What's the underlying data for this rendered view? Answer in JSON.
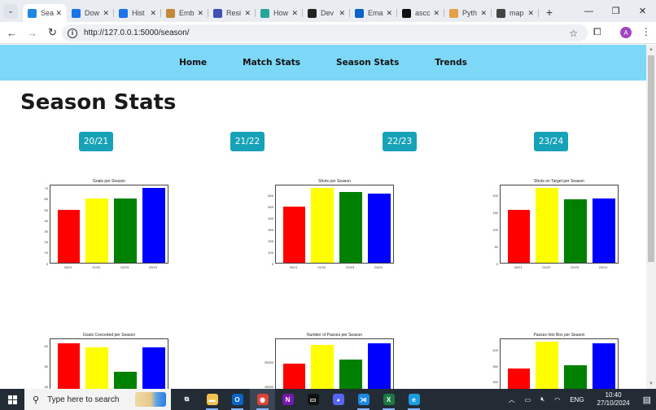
{
  "browser": {
    "tabs": [
      {
        "label": "Season Stats",
        "short": "Seas",
        "icon": "cc-icon",
        "color": "#1e88e5",
        "active": true
      },
      {
        "label": "Downloads",
        "short": "Dow",
        "icon": "download-icon",
        "color": "#1a73e8"
      },
      {
        "label": "History",
        "short": "Hist",
        "icon": "history-icon",
        "color": "#1a73e8"
      },
      {
        "label": "Embed",
        "short": "Emb",
        "icon": "emb-icon",
        "color": "#c28a3a"
      },
      {
        "label": "Resources",
        "short": "Resi",
        "icon": "res-icon",
        "color": "#3f51b5"
      },
      {
        "label": "How",
        "short": "How",
        "icon": "how-icon",
        "color": "#26a69a"
      },
      {
        "label": "Dev",
        "short": "Dev",
        "icon": "d-icon",
        "color": "#222222"
      },
      {
        "label": "Email",
        "short": "Ema",
        "icon": "outlook-icon",
        "color": "#0a64c8"
      },
      {
        "label": "ascc",
        "short": "ascc",
        "icon": "github-icon",
        "color": "#111111"
      },
      {
        "label": "Python",
        "short": "Pyth",
        "icon": "python-icon",
        "color": "#e3a048"
      },
      {
        "label": "map",
        "short": "map",
        "icon": "globe-icon",
        "color": "#444444"
      }
    ],
    "new_tab": "+",
    "url": "http://127.0.0.1:5000/season/",
    "profile_initial": "A",
    "window_controls": {
      "minimize": "—",
      "restore": "❐",
      "close": "✕"
    }
  },
  "navbar": {
    "items": [
      "Home",
      "Match Stats",
      "Season Stats",
      "Trends"
    ],
    "bg_color": "#7dd8f8"
  },
  "page": {
    "title": "Season Stats",
    "season_buttons": [
      "20/21",
      "21/22",
      "22/23",
      "23/24"
    ],
    "button_color": "#17a2b8"
  },
  "chart_data": [
    {
      "type": "bar",
      "title": "Goals per Season",
      "categories": [
        "20/21",
        "21/22",
        "22/23",
        "23/24"
      ],
      "values": [
        49,
        60,
        60,
        70
      ],
      "colors": [
        "#ff0000",
        "#ffff00",
        "#008000",
        "#0000ff"
      ],
      "yticks": [
        0,
        10,
        20,
        30,
        40,
        50,
        60,
        70
      ],
      "ylim": [
        0,
        73.5
      ],
      "xlabel": "",
      "ylabel": ""
    },
    {
      "type": "bar",
      "title": "Shots per Season",
      "categories": [
        "20/21",
        "21/22",
        "22/23",
        "23/24"
      ],
      "values": [
        495,
        660,
        625,
        610
      ],
      "colors": [
        "#ff0000",
        "#ffff00",
        "#008000",
        "#0000ff"
      ],
      "yticks": [
        0,
        100,
        200,
        300,
        400,
        500,
        600
      ],
      "ylim": [
        0,
        693
      ],
      "xlabel": "",
      "ylabel": ""
    },
    {
      "type": "bar",
      "title": "Shots on Target per Season",
      "categories": [
        "20/21",
        "21/22",
        "22/23",
        "23/24"
      ],
      "values": [
        155,
        220,
        186,
        188
      ],
      "colors": [
        "#ff0000",
        "#ffff00",
        "#008000",
        "#0000ff"
      ],
      "yticks": [
        0,
        50,
        100,
        150,
        200
      ],
      "ylim": [
        0,
        231
      ],
      "xlabel": "",
      "ylabel": ""
    },
    {
      "type": "bar",
      "title": "Goals Conceded per Season",
      "categories": [
        "20/21",
        "21/22",
        "22/23",
        "23/24"
      ],
      "values": [
        61,
        59,
        47,
        59
      ],
      "colors": [
        "#ff0000",
        "#ffff00",
        "#008000",
        "#0000ff"
      ],
      "yticks": [
        30,
        40,
        50,
        60
      ],
      "ylim": [
        25,
        64
      ],
      "xlabel": "",
      "ylabel": ""
    },
    {
      "type": "bar",
      "title": "Number of Passes per Season",
      "categories": [
        "20/21",
        "21/22",
        "22/23",
        "23/24"
      ],
      "values": [
        19500,
        23200,
        20300,
        23500
      ],
      "colors": [
        "#ff0000",
        "#ffff00",
        "#008000",
        "#0000ff"
      ],
      "yticks": [
        10000,
        15000,
        20000
      ],
      "ylim": [
        9000,
        24700
      ],
      "xlabel": "",
      "ylabel": ""
    },
    {
      "type": "bar",
      "title": "Passes Into Box per Season",
      "categories": [
        "20/21",
        "21/22",
        "22/23",
        "23/24"
      ],
      "values": [
        340,
        425,
        350,
        420
      ],
      "colors": [
        "#ff0000",
        "#ffff00",
        "#008000",
        "#0000ff"
      ],
      "yticks": [
        200,
        250,
        300,
        350,
        400
      ],
      "ylim": [
        190,
        437
      ],
      "xlabel": "",
      "ylabel": ""
    }
  ],
  "taskbar": {
    "search_placeholder": "Type here to search",
    "apps": [
      {
        "name": "task-view",
        "color": "#232b35",
        "glyph": "⧉"
      },
      {
        "name": "file-explorer",
        "color": "#f2c14e",
        "glyph": "▬"
      },
      {
        "name": "outlook",
        "color": "#0a64c8",
        "glyph": "O"
      },
      {
        "name": "chrome",
        "color": "#db4437",
        "glyph": "◉"
      },
      {
        "name": "onenote",
        "color": "#7719aa",
        "glyph": "N"
      },
      {
        "name": "terminal",
        "color": "#111111",
        "glyph": "▭"
      },
      {
        "name": "discord",
        "color": "#5865f2",
        "glyph": "◕"
      },
      {
        "name": "vscode",
        "color": "#1e88e5",
        "glyph": "⋊"
      },
      {
        "name": "excel",
        "color": "#1d7a45",
        "glyph": "X"
      },
      {
        "name": "edge",
        "color": "#1b9de2",
        "glyph": "e"
      }
    ],
    "tray": {
      "language": "ENG",
      "time": "10:40",
      "date": "27/10/2024"
    }
  }
}
